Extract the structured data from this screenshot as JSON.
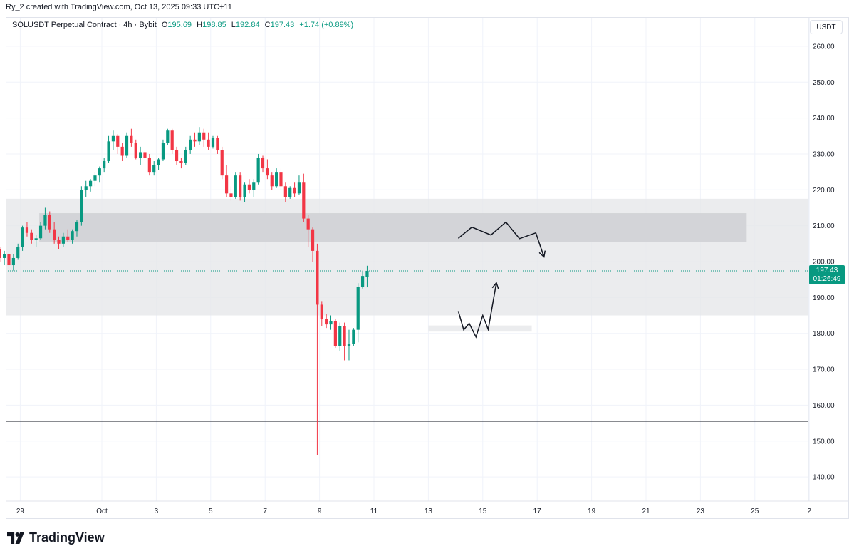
{
  "header": {
    "credit": "Ry_2 created with TradingView.com, Oct 13, 2025 09:33 UTC+11"
  },
  "legend": {
    "symbol": "SOLUSDT Perpetual Contract · 4h · Bybit",
    "open_label": "O",
    "open": "195.69",
    "high_label": "H",
    "high": "198.85",
    "low_label": "L",
    "low": "192.84",
    "close_label": "C",
    "close": "197.43",
    "change": "+1.74 (+0.89%)"
  },
  "currency_button": "USDT",
  "price_badge": {
    "price": "197.43",
    "countdown": "01:26:49"
  },
  "brand": {
    "name": "TradingView"
  },
  "colors": {
    "up": "#089981",
    "down": "#f23645",
    "zone_light": "#e6e7ea",
    "zone_dark": "#cfd0d3",
    "grid": "#f0f3fa"
  },
  "chart_data": {
    "type": "candlestick",
    "y_ticks": [
      "140.00",
      "150.00",
      "160.00",
      "170.00",
      "180.00",
      "190.00",
      "200.00",
      "210.00",
      "220.00",
      "230.00",
      "240.00",
      "250.00",
      "260.00"
    ],
    "x_ticks": [
      {
        "label": "29",
        "day": -2
      },
      {
        "label": "Oct",
        "day": 1
      },
      {
        "label": "3",
        "day": 3
      },
      {
        "label": "5",
        "day": 5
      },
      {
        "label": "7",
        "day": 7
      },
      {
        "label": "9",
        "day": 9
      },
      {
        "label": "11",
        "day": 11
      },
      {
        "label": "13",
        "day": 13
      },
      {
        "label": "15",
        "day": 15
      },
      {
        "label": "17",
        "day": 17
      },
      {
        "label": "19",
        "day": 19
      },
      {
        "label": "21",
        "day": 21
      },
      {
        "label": "23",
        "day": 23
      },
      {
        "label": "25",
        "day": 25
      },
      {
        "label": "2",
        "day": 27
      }
    ],
    "candles": [
      [
        204,
        205,
        202,
        203
      ],
      [
        203,
        203.5,
        201,
        202
      ],
      [
        202,
        203.5,
        200.5,
        201.5
      ],
      [
        201.5,
        204,
        201,
        203.5
      ],
      [
        203.5,
        204,
        200,
        201
      ],
      [
        201,
        203,
        199,
        202
      ],
      [
        202,
        202.5,
        198,
        199
      ],
      [
        199,
        202,
        197.5,
        201
      ],
      [
        201,
        205,
        200.5,
        204
      ],
      [
        204,
        210,
        203,
        209.5
      ],
      [
        209.5,
        211,
        207,
        208
      ],
      [
        208,
        209,
        205,
        206
      ],
      [
        206,
        207.5,
        204,
        206.5
      ],
      [
        206.5,
        211,
        206,
        210
      ],
      [
        210,
        215,
        209,
        213
      ],
      [
        213,
        214,
        208,
        209
      ],
      [
        209,
        211,
        205,
        206
      ],
      [
        206,
        207,
        203.5,
        205
      ],
      [
        205,
        208,
        204,
        207
      ],
      [
        207,
        209,
        205.5,
        206
      ],
      [
        206,
        209,
        205,
        208.5
      ],
      [
        208.5,
        211.5,
        207,
        211
      ],
      [
        211,
        221,
        210,
        220
      ],
      [
        220,
        222.5,
        218,
        221
      ],
      [
        221,
        223,
        219.5,
        222.5
      ],
      [
        222.5,
        225,
        221,
        224
      ],
      [
        224,
        226.5,
        222,
        226
      ],
      [
        226,
        229,
        225,
        228
      ],
      [
        228,
        235,
        227.5,
        233.5
      ],
      [
        233.5,
        236.5,
        231,
        235
      ],
      [
        235,
        235.5,
        230,
        232
      ],
      [
        232,
        233,
        228,
        229.5
      ],
      [
        229.5,
        236,
        229,
        235
      ],
      [
        235,
        237,
        232,
        233
      ],
      [
        233,
        234,
        228.5,
        229
      ],
      [
        229,
        232,
        227,
        230.5
      ],
      [
        230.5,
        231,
        228,
        229
      ],
      [
        229,
        230,
        224,
        225
      ],
      [
        225,
        228,
        224,
        227
      ],
      [
        227,
        229,
        225.5,
        228.5
      ],
      [
        228.5,
        234,
        228,
        233
      ],
      [
        233,
        237,
        232.5,
        236.5
      ],
      [
        236.5,
        237,
        230,
        231
      ],
      [
        231,
        232,
        227,
        228
      ],
      [
        228,
        229,
        226,
        227.5
      ],
      [
        227.5,
        232,
        227,
        231
      ],
      [
        231,
        235,
        230,
        234
      ],
      [
        234,
        236,
        232,
        233.5
      ],
      [
        233.5,
        237.5,
        232.5,
        236
      ],
      [
        236,
        237,
        232,
        234
      ],
      [
        234,
        236,
        231,
        232
      ],
      [
        232,
        235,
        231.5,
        234.5
      ],
      [
        234.5,
        235,
        230,
        231
      ],
      [
        231,
        232,
        223,
        224
      ],
      [
        224,
        227,
        218,
        219
      ],
      [
        219,
        221,
        217,
        218
      ],
      [
        218,
        225,
        217.5,
        224
      ],
      [
        224,
        225,
        217,
        218
      ],
      [
        218,
        222,
        216.5,
        221.5
      ],
      [
        221.5,
        223,
        219,
        220
      ],
      [
        220,
        223,
        218,
        222
      ],
      [
        222,
        230,
        221.5,
        229
      ],
      [
        229,
        229.5,
        225,
        226
      ],
      [
        226,
        228.5,
        223,
        224
      ],
      [
        224,
        225,
        220,
        221
      ],
      [
        221,
        226,
        220.5,
        225
      ],
      [
        225,
        226,
        220,
        221
      ],
      [
        221,
        222,
        216.5,
        218
      ],
      [
        218,
        221,
        217.5,
        220.5
      ],
      [
        220.5,
        222,
        218,
        219
      ],
      [
        219,
        224,
        218.5,
        222
      ],
      [
        222,
        224.5,
        211,
        212
      ],
      [
        212,
        213,
        204,
        209
      ],
      [
        209,
        209.5,
        200,
        203
      ],
      [
        203,
        205,
        146,
        188
      ],
      [
        188,
        189,
        182,
        184
      ],
      [
        184,
        185.5,
        181.5,
        182.5
      ],
      [
        182.5,
        185,
        181,
        183.5
      ],
      [
        183.5,
        184,
        176,
        176.5
      ],
      [
        176.5,
        183,
        175,
        182
      ],
      [
        182,
        183,
        172.5,
        176.5
      ],
      [
        176.5,
        181,
        172.5,
        177
      ],
      [
        177,
        181.5,
        176.5,
        181
      ],
      [
        181,
        194,
        177.5,
        193
      ],
      [
        193,
        197.5,
        192.5,
        196
      ],
      [
        195.69,
        198.85,
        192.84,
        197.43
      ]
    ],
    "current_price": 197.43,
    "support_line": 155.5,
    "zones": [
      {
        "from_day": -4.9,
        "to_day": 27,
        "low": 185,
        "high": 217.5,
        "shade": "light"
      },
      {
        "from_day": -1.3,
        "to_day": 24.7,
        "low": 205.5,
        "high": 213.5,
        "shade": "dark"
      },
      {
        "from_day": 13,
        "to_day": 16.8,
        "low": 180.5,
        "high": 182.2,
        "shade": "light"
      }
    ],
    "projections": [
      {
        "points": [
          [
            14.1,
            206.5
          ],
          [
            14.6,
            209.6
          ],
          [
            15.3,
            207.4
          ],
          [
            15.85,
            211
          ],
          [
            16.35,
            206.4
          ],
          [
            16.95,
            208
          ],
          [
            17.25,
            201.3
          ]
        ],
        "arrow_tip": [
          17.25,
          201.3
        ]
      },
      {
        "points": [
          [
            14.1,
            186.2
          ],
          [
            14.3,
            181
          ],
          [
            14.5,
            182.8
          ],
          [
            14.75,
            179
          ],
          [
            15,
            185
          ],
          [
            15.2,
            181.1
          ],
          [
            15.5,
            194.1
          ]
        ],
        "arrow_tip": [
          15.5,
          194.1
        ]
      }
    ]
  }
}
